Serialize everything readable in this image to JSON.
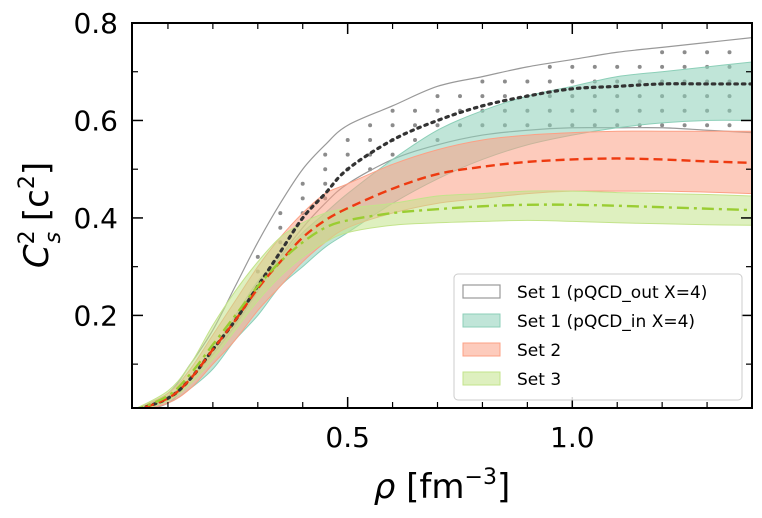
{
  "chart_data": {
    "type": "line",
    "title": "",
    "xlabel_parts": {
      "var": "ρ",
      "unit_open": " [fm",
      "unit_sup": "−3",
      "unit_close": "]"
    },
    "ylabel_parts": {
      "var": "C",
      "sub": "s",
      "sup": "2",
      "unit_open": " [c",
      "unit_sup": "2",
      "unit_close": "]"
    },
    "xlim": [
      0.02,
      1.4
    ],
    "ylim": [
      0.01,
      0.8
    ],
    "xticks": [
      {
        "value": 0.5,
        "label": "0.5"
      },
      {
        "value": 1.0,
        "label": "1.0"
      }
    ],
    "yticks": [
      {
        "value": 0.2,
        "label": "0.2"
      },
      {
        "value": 0.4,
        "label": "0.4"
      },
      {
        "value": 0.6,
        "label": "0.6"
      },
      {
        "value": 0.8,
        "label": "0.8"
      }
    ],
    "legend_position": "lower-right",
    "series": [
      {
        "name": "Set 1 (pQCD_out X=4)",
        "style": "outline-band",
        "color": "#999999",
        "median_color": "#333333",
        "median_dash": "dotted",
        "x": [
          0.02,
          0.1,
          0.15,
          0.2,
          0.25,
          0.3,
          0.35,
          0.4,
          0.45,
          0.5,
          0.6,
          0.7,
          0.8,
          0.9,
          1.0,
          1.1,
          1.2,
          1.3,
          1.4
        ],
        "upper": [
          0.005,
          0.04,
          0.1,
          0.17,
          0.26,
          0.35,
          0.43,
          0.5,
          0.55,
          0.59,
          0.63,
          0.67,
          0.69,
          0.71,
          0.725,
          0.74,
          0.75,
          0.76,
          0.77
        ],
        "lower": [
          0.001,
          0.02,
          0.07,
          0.12,
          0.18,
          0.25,
          0.32,
          0.38,
          0.43,
          0.47,
          0.52,
          0.55,
          0.57,
          0.58,
          0.585,
          0.585,
          0.585,
          0.58,
          0.575
        ],
        "median": [
          0.003,
          0.03,
          0.07,
          0.13,
          0.19,
          0.26,
          0.33,
          0.4,
          0.45,
          0.5,
          0.56,
          0.6,
          0.63,
          0.65,
          0.665,
          0.67,
          0.675,
          0.675,
          0.675
        ]
      },
      {
        "name": "Set 1 (pQCD_in X=4)",
        "style": "filled-band",
        "color": "#8ccfb8",
        "x": [
          0.02,
          0.1,
          0.15,
          0.2,
          0.25,
          0.3,
          0.35,
          0.4,
          0.45,
          0.5,
          0.6,
          0.7,
          0.8,
          0.9,
          1.0,
          1.1,
          1.2,
          1.3,
          1.4
        ],
        "upper": [
          0.005,
          0.035,
          0.07,
          0.13,
          0.2,
          0.27,
          0.32,
          0.37,
          0.41,
          0.45,
          0.52,
          0.58,
          0.62,
          0.65,
          0.67,
          0.69,
          0.7,
          0.71,
          0.72
        ],
        "lower": [
          0.001,
          0.02,
          0.05,
          0.09,
          0.15,
          0.2,
          0.26,
          0.3,
          0.34,
          0.37,
          0.43,
          0.48,
          0.52,
          0.55,
          0.57,
          0.585,
          0.595,
          0.6,
          0.6
        ]
      },
      {
        "name": "Set 2",
        "style": "filled-band",
        "color": "#fca085",
        "median_color": "#ee3a10",
        "median_dash": "dashed",
        "x": [
          0.02,
          0.1,
          0.15,
          0.2,
          0.25,
          0.3,
          0.35,
          0.4,
          0.45,
          0.5,
          0.6,
          0.7,
          0.8,
          0.9,
          1.0,
          1.1,
          1.2,
          1.3,
          1.4
        ],
        "upper": [
          0.005,
          0.04,
          0.09,
          0.16,
          0.23,
          0.3,
          0.36,
          0.41,
          0.45,
          0.47,
          0.51,
          0.54,
          0.56,
          0.57,
          0.575,
          0.578,
          0.578,
          0.578,
          0.578
        ],
        "lower": [
          0.001,
          0.02,
          0.05,
          0.1,
          0.15,
          0.21,
          0.26,
          0.31,
          0.35,
          0.38,
          0.41,
          0.43,
          0.44,
          0.45,
          0.455,
          0.455,
          0.455,
          0.453,
          0.45
        ],
        "median": [
          0.003,
          0.03,
          0.07,
          0.13,
          0.19,
          0.255,
          0.31,
          0.36,
          0.395,
          0.42,
          0.46,
          0.49,
          0.505,
          0.515,
          0.52,
          0.522,
          0.52,
          0.516,
          0.513
        ]
      },
      {
        "name": "Set 3",
        "style": "filled-band",
        "color": "#c3e38b",
        "median_color": "#9acd32",
        "median_dash": "dashdot",
        "x": [
          0.02,
          0.1,
          0.15,
          0.2,
          0.25,
          0.3,
          0.35,
          0.4,
          0.45,
          0.5,
          0.6,
          0.7,
          0.8,
          0.9,
          1.0,
          1.1,
          1.2,
          1.3,
          1.4
        ],
        "upper": [
          0.005,
          0.045,
          0.1,
          0.18,
          0.25,
          0.31,
          0.36,
          0.39,
          0.41,
          0.42,
          0.43,
          0.445,
          0.45,
          0.455,
          0.455,
          0.452,
          0.45,
          0.448,
          0.445
        ],
        "lower": [
          0.001,
          0.025,
          0.06,
          0.11,
          0.17,
          0.23,
          0.28,
          0.32,
          0.35,
          0.37,
          0.385,
          0.39,
          0.393,
          0.395,
          0.393,
          0.39,
          0.388,
          0.386,
          0.385
        ],
        "median": [
          0.003,
          0.035,
          0.08,
          0.14,
          0.2,
          0.26,
          0.31,
          0.35,
          0.38,
          0.395,
          0.41,
          0.418,
          0.424,
          0.427,
          0.427,
          0.425,
          0.422,
          0.419,
          0.416
        ]
      }
    ]
  }
}
